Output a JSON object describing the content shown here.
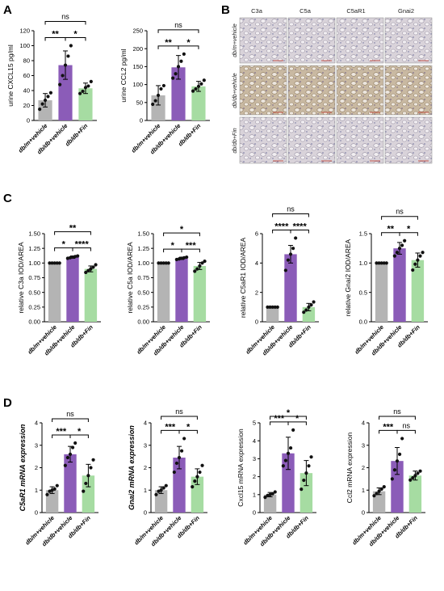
{
  "colors": {
    "gray": "#b4b4b4",
    "purple": "#8b5cb8",
    "green": "#a6dca2",
    "point": "#111111"
  },
  "panel_letters": [
    "A",
    "B",
    "C",
    "D"
  ],
  "micrograph": {
    "columns": [
      "C3a",
      "C5a",
      "C5aR1",
      "Gnai2"
    ],
    "rows": [
      "db/m+vehicle",
      "db/db+vehicle",
      "db/db+Fin"
    ]
  },
  "chart_data": [
    {
      "id": "A1",
      "panel": "A",
      "type": "bar",
      "categories": [
        "db/m+vehicle",
        "db/db+vehicle",
        "db/db+Fin"
      ],
      "values": [
        27,
        74,
        43
      ],
      "errors": [
        9,
        19,
        7
      ],
      "points": [
        [
          15,
          22,
          27,
          32,
          37
        ],
        [
          48,
          60,
          74,
          86,
          100
        ],
        [
          36,
          39,
          44,
          46,
          52
        ]
      ],
      "ylabel": "urine CXCL15 pg/ml",
      "ylim": [
        0,
        120
      ],
      "yticks": [
        0,
        20,
        40,
        60,
        80,
        100,
        120
      ],
      "ylabel_italic": false,
      "brackets": [
        {
          "from": 0,
          "to": 1,
          "label": "**"
        },
        {
          "from": 1,
          "to": 2,
          "label": "*"
        },
        {
          "from": 0,
          "to": 2,
          "label": "ns"
        }
      ]
    },
    {
      "id": "A2",
      "panel": "A",
      "type": "bar",
      "categories": [
        "db/m+vehicle",
        "db/db+vehicle",
        "db/db+Fin"
      ],
      "values": [
        70,
        148,
        95
      ],
      "errors": [
        27,
        33,
        14
      ],
      "points": [
        [
          45,
          55,
          70,
          88,
          97
        ],
        [
          118,
          130,
          150,
          165,
          185
        ],
        [
          82,
          88,
          95,
          102,
          112
        ]
      ],
      "ylabel": "urine CCL2 pg/ml",
      "ylim": [
        0,
        250
      ],
      "yticks": [
        0,
        50,
        100,
        150,
        200,
        250
      ],
      "ylabel_italic": false,
      "brackets": [
        {
          "from": 0,
          "to": 1,
          "label": "**"
        },
        {
          "from": 1,
          "to": 2,
          "label": "*"
        },
        {
          "from": 0,
          "to": 2,
          "label": "ns"
        }
      ]
    },
    {
      "id": "C1",
      "panel": "C",
      "type": "bar",
      "categories": [
        "db/m+vehicle",
        "db/db+vehicle",
        "db/db+Fin"
      ],
      "values": [
        1.0,
        1.1,
        0.9
      ],
      "errors": [
        0,
        0.02,
        0.05
      ],
      "points": [
        [
          1,
          1,
          1,
          1,
          1
        ],
        [
          1.08,
          1.09,
          1.1,
          1.11,
          1.12
        ],
        [
          0.84,
          0.87,
          0.9,
          0.93,
          0.97
        ]
      ],
      "ylabel": "relative C3a IOD/AREA",
      "ylim": [
        0,
        1.5
      ],
      "yticks": [
        0,
        0.25,
        0.5,
        0.75,
        1.0,
        1.25,
        1.5
      ],
      "ylabel_italic": false,
      "brackets": [
        {
          "from": 0,
          "to": 1,
          "label": "*"
        },
        {
          "from": 1,
          "to": 2,
          "label": "****"
        },
        {
          "from": 0,
          "to": 2,
          "label": "**"
        }
      ]
    },
    {
      "id": "C2",
      "panel": "C",
      "type": "bar",
      "categories": [
        "db/m+vehicle",
        "db/db+vehicle",
        "db/db+Fin"
      ],
      "values": [
        1.0,
        1.08,
        0.95
      ],
      "errors": [
        0,
        0.02,
        0.06
      ],
      "points": [
        [
          1,
          1,
          1,
          1,
          1
        ],
        [
          1.06,
          1.07,
          1.08,
          1.09,
          1.1
        ],
        [
          0.86,
          0.9,
          0.95,
          1.0,
          1.03
        ]
      ],
      "ylabel": "relative C5a IOD/AREA",
      "ylim": [
        0,
        1.5
      ],
      "yticks": [
        0,
        0.25,
        0.5,
        0.75,
        1.0,
        1.25,
        1.5
      ],
      "ylabel_italic": false,
      "brackets": [
        {
          "from": 0,
          "to": 1,
          "label": "*"
        },
        {
          "from": 1,
          "to": 2,
          "label": "***"
        },
        {
          "from": 0,
          "to": 2,
          "label": "*"
        }
      ]
    },
    {
      "id": "C3",
      "panel": "C",
      "type": "bar",
      "categories": [
        "db/m+vehicle",
        "db/db+vehicle",
        "db/db+Fin"
      ],
      "values": [
        1.0,
        4.6,
        1.0
      ],
      "errors": [
        0,
        0.6,
        0.25
      ],
      "points": [
        [
          1,
          1,
          1,
          1,
          1
        ],
        [
          3.5,
          4.2,
          4.6,
          5.0,
          5.7
        ],
        [
          0.65,
          0.8,
          1.0,
          1.15,
          1.35
        ]
      ],
      "ylabel": "relative C5aR1 IOD/AREA",
      "ylim": [
        0,
        6
      ],
      "yticks": [
        0,
        2,
        4,
        6
      ],
      "ylabel_italic": false,
      "brackets": [
        {
          "from": 0,
          "to": 1,
          "label": "****"
        },
        {
          "from": 1,
          "to": 2,
          "label": "****"
        },
        {
          "from": 0,
          "to": 2,
          "label": "ns"
        }
      ]
    },
    {
      "id": "C4",
      "panel": "C",
      "type": "bar",
      "categories": [
        "db/m+vehicle",
        "db/db+vehicle",
        "db/db+Fin"
      ],
      "values": [
        1.0,
        1.25,
        1.05
      ],
      "errors": [
        0,
        0.1,
        0.12
      ],
      "points": [
        [
          1,
          1,
          1,
          1,
          1
        ],
        [
          1.12,
          1.18,
          1.25,
          1.3,
          1.38
        ],
        [
          0.88,
          0.98,
          1.05,
          1.12,
          1.18
        ]
      ],
      "ylabel": "relative Gnai2 IOD/AREA",
      "ylim": [
        0,
        1.5
      ],
      "yticks": [
        0,
        0.5,
        1.0,
        1.5
      ],
      "ylabel_italic": false,
      "brackets": [
        {
          "from": 0,
          "to": 1,
          "label": "**"
        },
        {
          "from": 1,
          "to": 2,
          "label": "*"
        },
        {
          "from": 0,
          "to": 2,
          "label": "ns"
        }
      ]
    },
    {
      "id": "D1",
      "panel": "D",
      "type": "bar",
      "categories": [
        "db/m+vehicle",
        "db/db+vehicle",
        "db/db+Fin"
      ],
      "values": [
        1.0,
        2.6,
        1.65
      ],
      "errors": [
        0.15,
        0.35,
        0.5
      ],
      "points": [
        [
          0.8,
          0.95,
          1.0,
          1.05,
          1.2
        ],
        [
          2.1,
          2.45,
          2.6,
          2.9,
          3.1
        ],
        [
          0.95,
          1.3,
          1.65,
          2.0,
          2.35
        ]
      ],
      "ylabel": "C5aR1 mRNA expression",
      "ylim": [
        0,
        4
      ],
      "yticks": [
        0,
        1,
        2,
        3,
        4
      ],
      "ylabel_italic": true,
      "brackets": [
        {
          "from": 0,
          "to": 1,
          "label": "***"
        },
        {
          "from": 1,
          "to": 2,
          "label": "*"
        },
        {
          "from": 0,
          "to": 2,
          "label": "ns"
        }
      ]
    },
    {
      "id": "D2",
      "panel": "D",
      "type": "bar",
      "categories": [
        "db/m+vehicle",
        "db/db+vehicle",
        "db/db+Fin"
      ],
      "values": [
        1.0,
        2.45,
        1.6
      ],
      "errors": [
        0.15,
        0.5,
        0.35
      ],
      "points": [
        [
          0.8,
          0.95,
          1.0,
          1.1,
          1.2
        ],
        [
          1.8,
          2.2,
          2.45,
          2.75,
          3.3
        ],
        [
          1.15,
          1.4,
          1.6,
          1.8,
          2.1
        ]
      ],
      "ylabel": "Gnai2 mRNA expression",
      "ylim": [
        0,
        4
      ],
      "yticks": [
        0,
        1,
        2,
        3,
        4
      ],
      "ylabel_italic": true,
      "brackets": [
        {
          "from": 0,
          "to": 1,
          "label": "***"
        },
        {
          "from": 1,
          "to": 2,
          "label": "*"
        },
        {
          "from": 0,
          "to": 2,
          "label": "ns"
        }
      ]
    },
    {
      "id": "D3",
      "panel": "D",
      "type": "bar",
      "categories": [
        "db/m+vehicle",
        "db/db+vehicle",
        "db/db+Fin"
      ],
      "values": [
        1.0,
        3.3,
        2.2
      ],
      "errors": [
        0.12,
        0.9,
        0.7
      ],
      "points": [
        [
          0.85,
          0.95,
          1.0,
          1.05,
          1.15
        ],
        [
          2.6,
          2.9,
          3.3,
          3.6,
          4.6
        ],
        [
          1.3,
          1.8,
          2.2,
          2.6,
          3.1
        ]
      ],
      "ylabel": "Cxcl15 mRNA expression",
      "ylim": [
        0,
        5
      ],
      "yticks": [
        0,
        1,
        2,
        3,
        4,
        5
      ],
      "ylabel_italic": false,
      "brackets": [
        {
          "from": 0,
          "to": 1,
          "label": "***"
        },
        {
          "from": 1,
          "to": 2,
          "label": "*"
        },
        {
          "from": 0,
          "to": 2,
          "label": "*"
        }
      ]
    },
    {
      "id": "D4",
      "panel": "D",
      "type": "bar",
      "categories": [
        "db/m+vehicle",
        "db/db+vehicle",
        "db/db+Fin"
      ],
      "values": [
        0.95,
        2.3,
        1.65
      ],
      "errors": [
        0.15,
        0.6,
        0.2
      ],
      "points": [
        [
          0.75,
          0.85,
          0.95,
          1.05,
          1.15
        ],
        [
          1.5,
          1.9,
          2.3,
          2.6,
          3.3
        ],
        [
          1.45,
          1.55,
          1.65,
          1.75,
          1.85
        ]
      ],
      "ylabel": "Ccl2 mRNA expression",
      "ylim": [
        0,
        4
      ],
      "yticks": [
        0,
        1,
        2,
        3,
        4
      ],
      "ylabel_italic": false,
      "brackets": [
        {
          "from": 0,
          "to": 1,
          "label": "***"
        },
        {
          "from": 1,
          "to": 2,
          "label": "ns"
        },
        {
          "from": 0,
          "to": 2,
          "label": "ns"
        }
      ]
    }
  ]
}
